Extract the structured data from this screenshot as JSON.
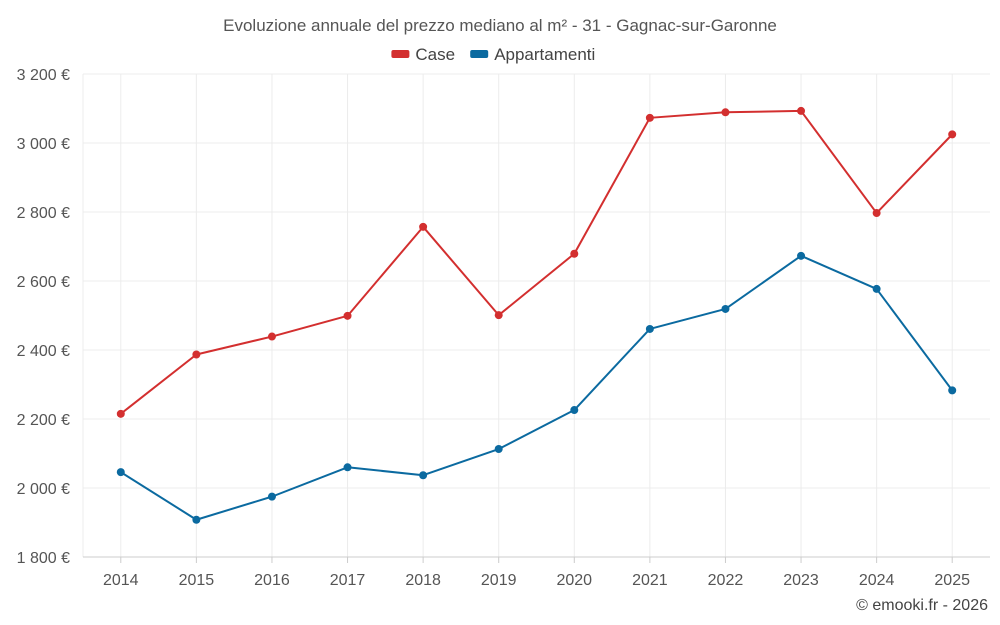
{
  "chart_data": {
    "type": "line",
    "title": "Evoluzione annuale del prezzo mediano al m² - 31 - Gagnac-sur-Garonne",
    "categories": [
      "2014",
      "2015",
      "2016",
      "2017",
      "2018",
      "2019",
      "2020",
      "2021",
      "2022",
      "2023",
      "2024",
      "2025"
    ],
    "series": [
      {
        "name": "Case",
        "color": "#d32f2f",
        "values": [
          2215,
          2387,
          2439,
          2499,
          2757,
          2501,
          2679,
          3073,
          3089,
          3093,
          2797,
          3025
        ]
      },
      {
        "name": "Appartamenti",
        "color": "#0b6aa0",
        "values": [
          2046,
          1908,
          1975,
          2060,
          2037,
          2113,
          2226,
          2461,
          2519,
          2673,
          2577,
          2283
        ]
      }
    ],
    "ylim": [
      1800,
      3200
    ],
    "yticks": [
      1800,
      2000,
      2200,
      2400,
      2600,
      2800,
      3000,
      3200
    ],
    "ytick_labels": [
      "1 800 €",
      "2 000 €",
      "2 200 €",
      "2 400 €",
      "2 600 €",
      "2 800 €",
      "3 000 €",
      "3 200 €"
    ],
    "grid": true,
    "legend_position": "top-center",
    "credit": "© emooki.fr - 2026"
  }
}
